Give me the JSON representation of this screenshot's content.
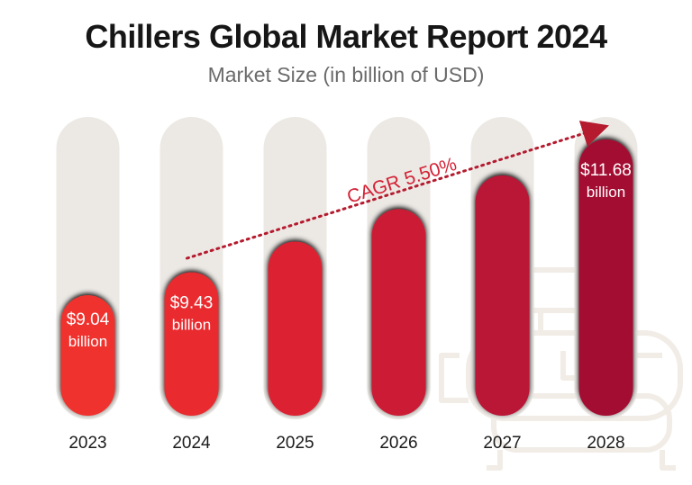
{
  "chart_data": {
    "type": "bar",
    "title": "Chillers Global Market Report 2024",
    "subtitle": "Market Size (in billion of USD)",
    "categories": [
      "2023",
      "2024",
      "2025",
      "2026",
      "2027",
      "2028"
    ],
    "values": [
      9.04,
      9.43,
      9.95,
      10.5,
      11.07,
      11.68
    ],
    "ylim": [
      7.0,
      12.0
    ],
    "value_labels": [
      {
        "index": 0,
        "amount": "$9.04",
        "unit": "billion"
      },
      {
        "index": 1,
        "amount": "$9.43",
        "unit": "billion"
      },
      {
        "index": 5,
        "amount": "$11.68",
        "unit": "billion"
      }
    ],
    "annotation": {
      "text": "CAGR 5.50%",
      "from_index": 1,
      "to_index": 5
    },
    "bar_colors": [
      "#f0312d",
      "#e92a2f",
      "#dc2233",
      "#cc1a36",
      "#ba1236",
      "#a40a33"
    ],
    "track_color": "#ece9e5"
  }
}
